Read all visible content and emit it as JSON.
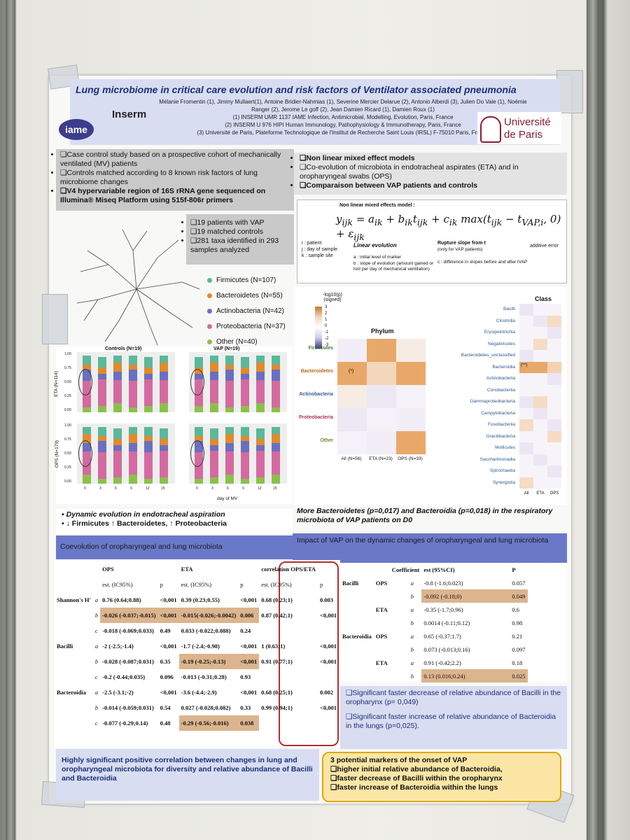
{
  "title": "Lung microbiome in critical care evolution and risk factors of Ventilator associated pneumonia",
  "authors": "Mélanie Fromentin (1), Jimmy Mullaert(1), Antoine Bridier-Nahmias (1), Severine Mercier Delarue (2), Antonio Alberdi (3), Julien Do Vale (1), Noémie Ranger (2), Jerome Le goff (2), Jean Damien Ricard (1), Damien Roux (1)",
  "affiliations": [
    "(1)   INSERM UMR 1137 IAME Infection, Antimicrobial, Modelling, Evolution, Paris, France",
    "(2) INSERM U 976 HIPI Human Immunology, Pathophysiology & Immunotherapy, Paris, France",
    "(3) Université de Paris, Plateforme Technologique de l'Institut de Recherche Saint Louis (IRSL) F-75010 Paris, France"
  ],
  "logos": {
    "iame": "iame",
    "inserm": "Inserm",
    "univ_line1": "Université",
    "univ_line2": "de Paris"
  },
  "methods_left": [
    "Case control study based on a prospective cohort of mechanically ventilated (MV) patients",
    "Controls matched according to 8 known risk factors of lung microbiome changes",
    "V4 hypervariable region of 16S rRNA gene sequenced on Illumina® Miseq Platform using 515f-806r primers"
  ],
  "methods_right": [
    "Non linear mixed effect models",
    "Co-evolution of microbiota in endotracheal aspirates (ETA) and in oropharyngeal swabs (OPS)",
    "Comparaison between VAP patients and controls"
  ],
  "cohort": [
    "19 patients with VAP",
    "19 matched controls",
    "281 taxa identified in 293 samples analyzed"
  ],
  "phyla_legend": [
    {
      "label": "Firmicutes (N=107)",
      "color": "#5bb89a"
    },
    {
      "label": "Bacteroidetes (N=55)",
      "color": "#e08b2c"
    },
    {
      "label": "Actinobacteria (N=42)",
      "color": "#6a6fc0"
    },
    {
      "label": "Proteobacteria (N=37)",
      "color": "#d46aa0"
    },
    {
      "label": "Other (N=40)",
      "color": "#8cc04a"
    }
  ],
  "model": {
    "header": "Non linear mixed effects model :",
    "notes_left": [
      "i : patient",
      "j : day of sample",
      "k : sample site"
    ],
    "linear_title": "Linear evolution",
    "linear_a": "a : initial level of marker",
    "linear_b": "b : slope of evolution (amount gained or lost per day of mechanical ventilation)",
    "rupture_title": "Rupture slope from t",
    "rupture_sub": "(only for VAP patients)",
    "rupture_c": "c : différence in slopes before and after tVAP",
    "additive": "additive error"
  },
  "heatmap": {
    "scale_title": "-log10(p) (signed)",
    "scale_ticks": [
      "3",
      "2",
      "1",
      "0",
      "-1",
      "-2",
      "-3"
    ],
    "phylum_title": "Phylum",
    "class_title": "Class",
    "phyla": [
      "Firmicutes",
      "Bacteroidetes",
      "Actinobacteria",
      "Proteobacteria",
      "Other"
    ],
    "columns": [
      "All (N=56)",
      "ETA (N=23)",
      "OPS (N=33)"
    ],
    "classes": [
      "Bacilli",
      "Clostridia",
      "Erysipelotrichia",
      "Negativicutes",
      "Bacteroidetes_unclassified",
      "Bacteroidia",
      "Actinobacteria",
      "Coriobacteriia",
      "Gammaproteobacteria",
      "Campylobacteria",
      "Fusobacteriia",
      "Gracilibacteria",
      "Mollicutes",
      "Saccharimonadia",
      "Spirochaetia",
      "Synergistia"
    ],
    "class_columns": [
      "All",
      "ETA",
      "OPS"
    ],
    "star_phylum": "(*)",
    "star_class": "(**)"
  },
  "bar_panels": {
    "controls_title": "Controls (N=19)",
    "vap_title": "VAP (N=19)",
    "eta_label": "ETA (N=114)",
    "ops_label": "OPS (N=179)",
    "y_ticks": [
      "1.00",
      "0.75",
      "0.50",
      "0.25",
      "0.00"
    ],
    "x_ticks": [
      "0",
      "3",
      "6",
      "9",
      "12",
      "15"
    ],
    "x_label": "day of MV"
  },
  "dynamic": {
    "line1": "Dynamic evolution in endotracheal aspiration",
    "line2": "↓ Firmicutes ↑ Bacteroidetes, ↑ Proteobacteria"
  },
  "bacteroidetes_finding": "More Bacteroidetes (p=0,017) and Bacteroidia (p=0,018) in the respiratory microbiota of VAP patients on D0",
  "coevol_header": "Coevolution of oropharyngeal and lung microbiota",
  "impact_header": "Impact of VAP on the dynamic changes of oropharyngeal and lung microbiota",
  "table1": {
    "headers": [
      "OPS",
      "ETA",
      "correlation OPS/ETA"
    ],
    "subheaders": [
      "est. (IC95%)",
      "p",
      "est. (IC95%)",
      "p",
      "est. (IC95%)",
      "p"
    ],
    "rows": [
      {
        "group": "Shannon's H'",
        "param": "a",
        "ops": "0.76 (0.64;0.88)",
        "ops_p": "<0,001",
        "eta": "0.39 (0.23;0.55)",
        "eta_p": "<0,001",
        "cor": "0.68 (0.23;1)",
        "cor_p": "0.003"
      },
      {
        "group": "",
        "param": "b",
        "ops": "-0.026 (-0.037;-0.015)",
        "ops_p": "<0,001",
        "eta": "-0.015(-0.026;-0.0042)",
        "eta_p": "0.006",
        "cor": "0.87 (0.42;1)",
        "cor_p": "<0,001"
      },
      {
        "group": "",
        "param": "c",
        "ops": "-0.018 (-0.069;0.033)",
        "ops_p": "0.49",
        "eta": "0.033 (-0.022;0.088)",
        "eta_p": "0.24",
        "cor": "",
        "cor_p": ""
      },
      {
        "group": "Bacilli",
        "param": "a",
        "ops": "-2 (-2.5;-1.4)",
        "ops_p": "<0,001",
        "eta": "-1.7 (-2.4;-0.98)",
        "eta_p": "<0,001",
        "cor": "1 (0.63;1)",
        "cor_p": "<0,001"
      },
      {
        "group": "",
        "param": "b",
        "ops": "-0.028 (-0.087;0.031)",
        "ops_p": "0.35",
        "eta": "-0.19 (-0.25;-0.13)",
        "eta_p": "<0,001",
        "cor": "0.91 (0.77;1)",
        "cor_p": "<0,001"
      },
      {
        "group": "",
        "param": "c",
        "ops": "-0.2 (-0.44;0.035)",
        "ops_p": "0.096",
        "eta": "-0.013 (-0.31;0.28)",
        "eta_p": "0.93",
        "cor": "",
        "cor_p": ""
      },
      {
        "group": "Bacteroidia",
        "param": "a",
        "ops": "-2.5 (-3.1;-2)",
        "ops_p": "<0,001",
        "eta": "-3.6 (-4.4;-2.9)",
        "eta_p": "<0,001",
        "cor": "0.68 (0.25;1)",
        "cor_p": "0.002"
      },
      {
        "group": "",
        "param": "b",
        "ops": "-0.014 (-0.059;0.031)",
        "ops_p": "0.54",
        "eta": "0.027 (-0.028;0.082)",
        "eta_p": "0.33",
        "cor": "0.99 (0.94;1)",
        "cor_p": "<0,001"
      },
      {
        "group": "",
        "param": "c",
        "ops": "-0.077 (-0.29;0.14)",
        "ops_p": "0.48",
        "eta": "-0.29 (-0.56;-0.016)",
        "eta_p": "0.038",
        "cor": "",
        "cor_p": ""
      }
    ]
  },
  "table2": {
    "headers": [
      "Coefficient",
      "est (95%CI)",
      "P"
    ],
    "rows": [
      {
        "group": "Bacilli",
        "site": "OPS",
        "coef": "a",
        "est": "-0.8 (-1.6;0.023)",
        "p": "0.057"
      },
      {
        "group": "",
        "site": "",
        "coef": "b",
        "est": "-0.092 (-0.18;0)",
        "p": "0.049"
      },
      {
        "group": "",
        "site": "ETA",
        "coef": "a",
        "est": "-0.35 (-1.7;0.96)",
        "p": "0.6"
      },
      {
        "group": "",
        "site": "",
        "coef": "b",
        "est": "0.0014 (-0.11;0.12)",
        "p": "0.98"
      },
      {
        "group": "Bacteroidia",
        "site": "OPS",
        "coef": "a",
        "est": "0.65 (-0.37;1.7)",
        "p": "0.21"
      },
      {
        "group": "",
        "site": "",
        "coef": "b",
        "est": "0.073 (-0.013;0.16)",
        "p": "0.097"
      },
      {
        "group": "",
        "site": "ETA",
        "coef": "a",
        "est": "0.91 (-0.42;2.2)",
        "p": "0.18"
      },
      {
        "group": "",
        "site": "",
        "coef": "b",
        "est": "0.13 (0.016;0.24)",
        "p": "0.025"
      }
    ]
  },
  "findings_right": [
    "Significant faster decrease of relative abundance of Bacilli  in the oropharynx (p= 0,049)",
    "Significant faster increase of relative abundance of Bacteroidia in the lungs (p=0,025)."
  ],
  "conclusion_left": "Highly significant positive correlation between changes in lung and oropharyngeal microbiota for diversity and relative abundance of Bacilli and Bacteroidia",
  "conclusion_right": {
    "title": "3 potential markers of the onset of VAP",
    "items": [
      "higher initial relative abundance  of Bacteroidia,",
      "faster decrease of Bacilli within the oropharynx",
      "faster increase of Bacteroidia within the lungs"
    ]
  }
}
